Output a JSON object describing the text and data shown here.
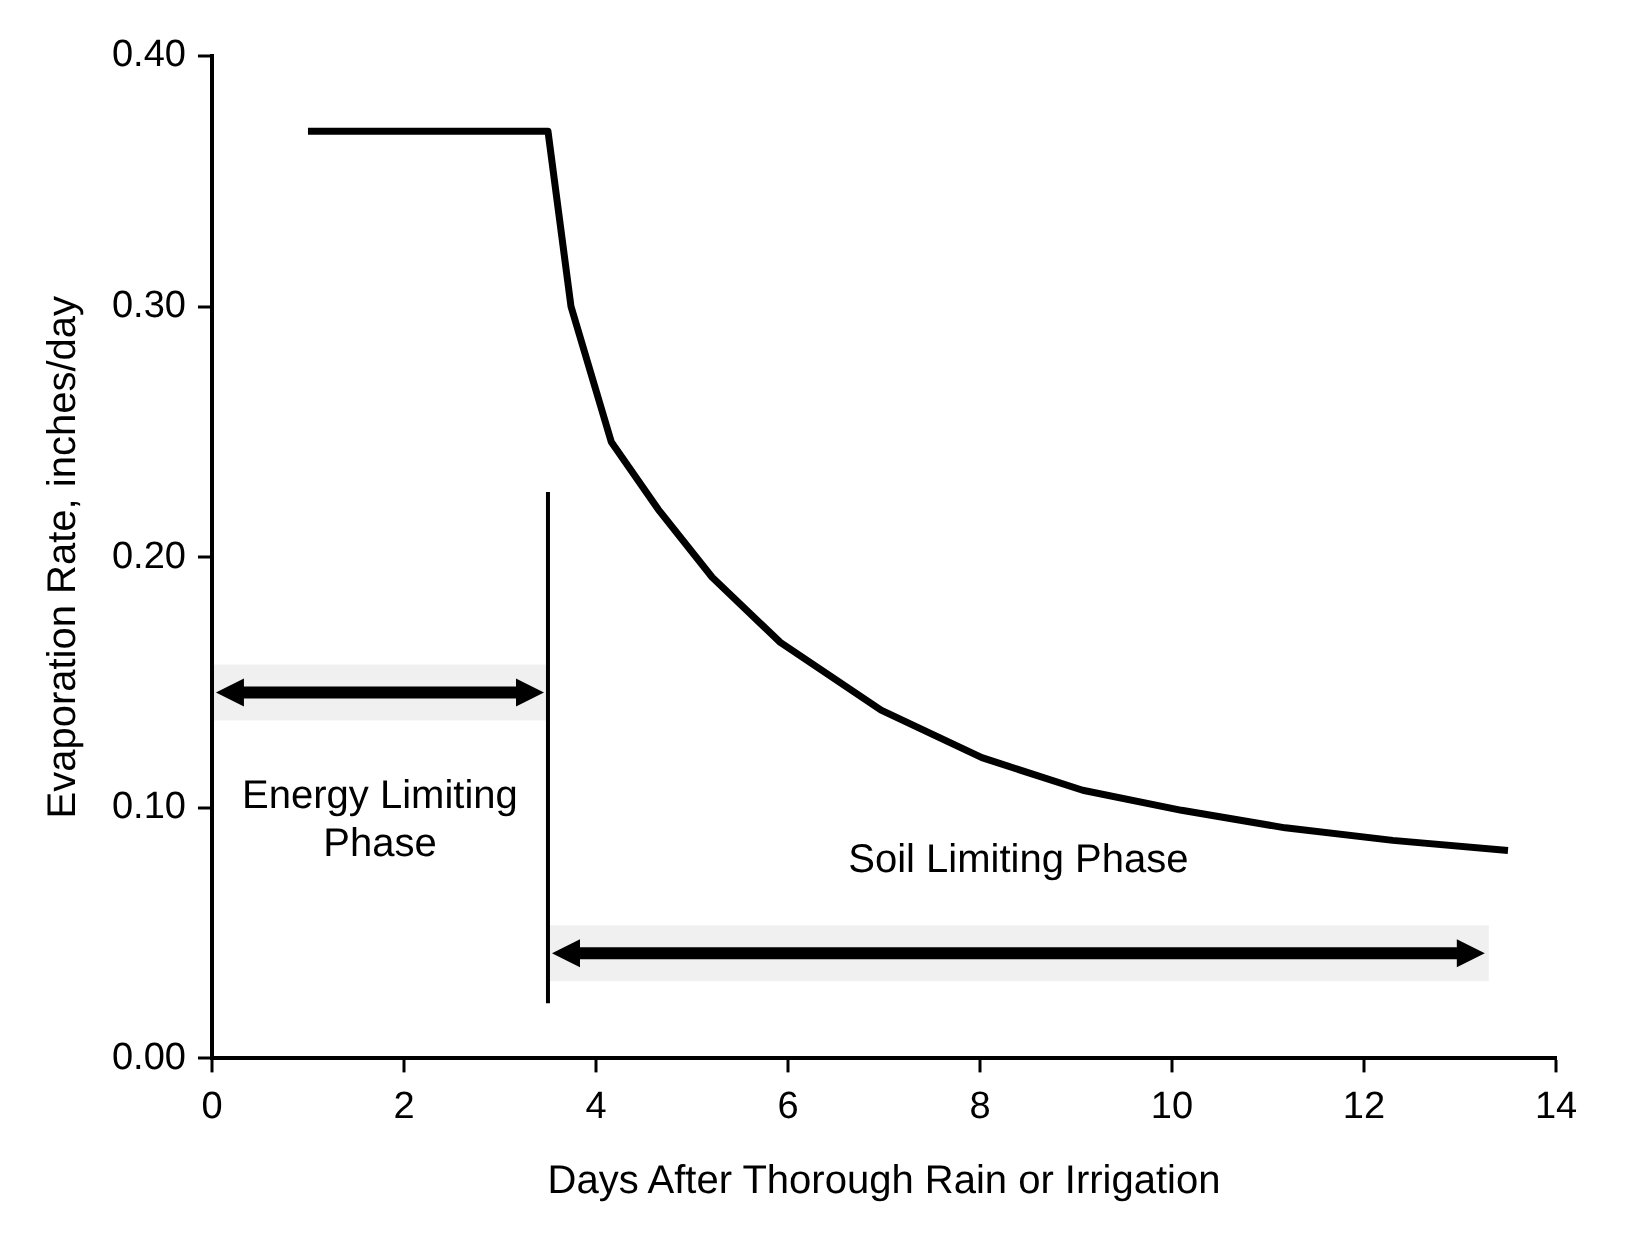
{
  "chart_data": {
    "type": "line",
    "xlabel": "Days After Thorough Rain or Irrigation",
    "ylabel": "Evaporation Rate, inches/day",
    "series": [
      {
        "color": "#000000",
        "x": [
          1,
          3.5,
          3.74,
          4.16,
          4.65,
          5.21,
          5.92,
          6.97,
          8.02,
          9.07,
          10.1,
          11.18,
          12.3,
          13.5
        ],
        "values": [
          0.37,
          0.37,
          0.3,
          0.246,
          0.219,
          0.192,
          0.166,
          0.139,
          0.12,
          0.107,
          0.099,
          0.092,
          0.087,
          0.083
        ]
      }
    ],
    "xlim": [
      0,
      14
    ],
    "xticks": [
      0,
      2,
      4,
      6,
      8,
      10,
      12,
      14
    ],
    "ylim": [
      0,
      0.4
    ],
    "yticks": [
      {
        "value": 0,
        "label": "0.00"
      },
      {
        "value": 0.1,
        "label": "0.10"
      },
      {
        "value": 0.2,
        "label": "0.20"
      },
      {
        "value": 0.3,
        "label": "0.30"
      },
      {
        "value": 0.4,
        "label": "0.40"
      }
    ],
    "ref_lines": [
      {
        "axis": "x",
        "value": 3.5
      }
    ],
    "bands": [
      {
        "axis": "x",
        "from": 0,
        "to": 3.5,
        "label": "Energy Limiting Phase"
      },
      {
        "axis": "x",
        "from": 3.5,
        "to": 13.3,
        "label": "Soil Limiting Phase"
      }
    ],
    "marker": "none",
    "line_style": "solid",
    "grid": false,
    "legend": false
  }
}
